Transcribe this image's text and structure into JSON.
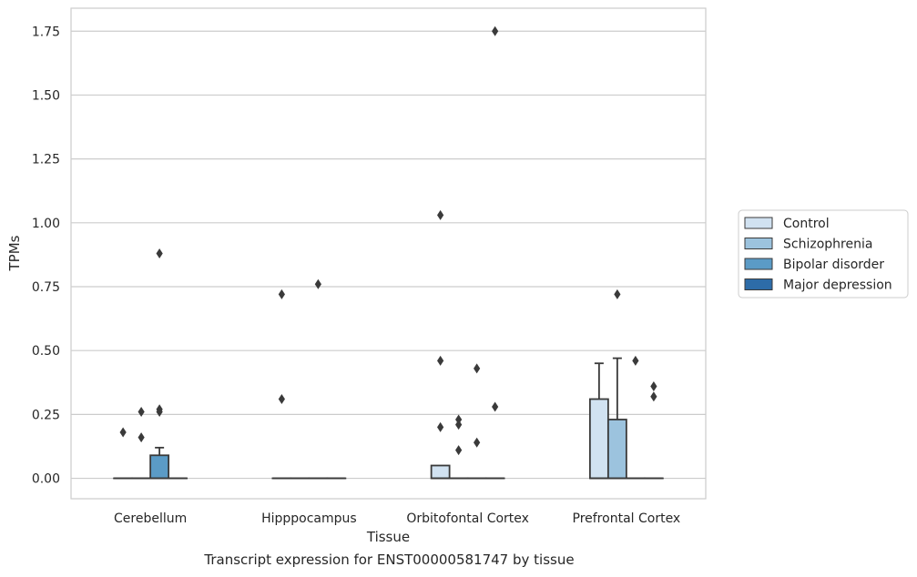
{
  "caption": "Transcript expression for ENST00000581747 by tissue",
  "chart_data": {
    "type": "box",
    "xlabel": "Tissue",
    "ylabel": "TPMs",
    "ylim": [
      -0.08,
      1.84
    ],
    "yticks": [
      0.0,
      0.25,
      0.5,
      0.75,
      1.0,
      1.25,
      1.5,
      1.75
    ],
    "ytick_labels": [
      "0.00",
      "0.25",
      "0.50",
      "0.75",
      "1.00",
      "1.25",
      "1.50",
      "1.75"
    ],
    "grid": "horizontal",
    "legend_position": "right",
    "categories": [
      "Cerebellum",
      "Hipppocampus",
      "Orbitofontal Cortex",
      "Prefrontal Cortex"
    ],
    "series": [
      {
        "name": "Control",
        "color": "#d1e2f1",
        "boxes": [
          {
            "q1": 0,
            "median": 0,
            "q3": 0,
            "whislo": 0,
            "whishi": 0,
            "fliers": [
              0.18
            ]
          },
          {
            "q1": 0,
            "median": 0,
            "q3": 0,
            "whislo": 0,
            "whishi": 0,
            "fliers": [
              0.72,
              0.31
            ]
          },
          {
            "q1": 0,
            "median": 0,
            "q3": 0.05,
            "whislo": 0,
            "whishi": 0.05,
            "fliers": [
              1.03,
              0.46,
              0.2
            ]
          },
          {
            "q1": 0,
            "median": 0,
            "q3": 0.31,
            "whislo": 0,
            "whishi": 0.45,
            "fliers": []
          }
        ]
      },
      {
        "name": "Schizophrenia",
        "color": "#9cc3de",
        "boxes": [
          {
            "q1": 0,
            "median": 0,
            "q3": 0,
            "whislo": 0,
            "whishi": 0,
            "fliers": [
              0.26,
              0.16
            ]
          },
          {
            "q1": 0,
            "median": 0,
            "q3": 0,
            "whislo": 0,
            "whishi": 0,
            "fliers": []
          },
          {
            "q1": 0,
            "median": 0,
            "q3": 0,
            "whislo": 0,
            "whishi": 0,
            "fliers": [
              0.23,
              0.21,
              0.11
            ]
          },
          {
            "q1": 0,
            "median": 0,
            "q3": 0.23,
            "whislo": 0,
            "whishi": 0.47,
            "fliers": [
              0.72
            ]
          }
        ]
      },
      {
        "name": "Bipolar disorder",
        "color": "#5b9bc6",
        "boxes": [
          {
            "q1": 0,
            "median": 0,
            "q3": 0.09,
            "whislo": 0,
            "whishi": 0.12,
            "fliers": [
              0.88,
              0.27,
              0.26
            ]
          },
          {
            "q1": 0,
            "median": 0,
            "q3": 0,
            "whislo": 0,
            "whishi": 0,
            "fliers": [
              0.76
            ]
          },
          {
            "q1": 0,
            "median": 0,
            "q3": 0,
            "whislo": 0,
            "whishi": 0,
            "fliers": [
              0.43,
              0.14
            ]
          },
          {
            "q1": 0,
            "median": 0,
            "q3": 0,
            "whislo": 0,
            "whishi": 0,
            "fliers": [
              0.46
            ]
          }
        ]
      },
      {
        "name": "Major depression",
        "color": "#2d6ca8",
        "boxes": [
          {
            "q1": 0,
            "median": 0,
            "q3": 0,
            "whislo": 0,
            "whishi": 0,
            "fliers": []
          },
          {
            "q1": 0,
            "median": 0,
            "q3": 0,
            "whislo": 0,
            "whishi": 0,
            "fliers": []
          },
          {
            "q1": 0,
            "median": 0,
            "q3": 0,
            "whislo": 0,
            "whishi": 0,
            "fliers": [
              1.75,
              0.28
            ]
          },
          {
            "q1": 0,
            "median": 0,
            "q3": 0,
            "whislo": 0,
            "whishi": 0,
            "fliers": [
              0.36,
              0.32
            ]
          }
        ]
      }
    ]
  }
}
